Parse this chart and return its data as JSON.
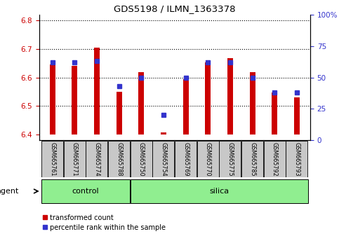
{
  "title": "GDS5198 / ILMN_1363378",
  "samples": [
    "GSM665761",
    "GSM665771",
    "GSM665774",
    "GSM665788",
    "GSM665750",
    "GSM665754",
    "GSM665769",
    "GSM665770",
    "GSM665775",
    "GSM665785",
    "GSM665792",
    "GSM665793"
  ],
  "n_control": 4,
  "n_silica": 8,
  "transformed_count": [
    6.645,
    6.642,
    6.706,
    6.551,
    6.618,
    6.408,
    6.594,
    6.654,
    6.668,
    6.618,
    6.548,
    6.529
  ],
  "percentile_rank": [
    62,
    62,
    63,
    43,
    50,
    20,
    50,
    62,
    62,
    50,
    38,
    38
  ],
  "ylim_left": [
    6.38,
    6.82
  ],
  "ylim_right": [
    0,
    100
  ],
  "yticks_left": [
    6.4,
    6.5,
    6.6,
    6.7,
    6.8
  ],
  "yticks_right": [
    0,
    25,
    50,
    75,
    100
  ],
  "bar_color": "#cc0000",
  "dot_color": "#3333cc",
  "bar_bottom": 6.4,
  "group_color": "#90ee90",
  "left_axis_color": "#cc0000",
  "right_axis_color": "#3333cc",
  "tick_label_bg": "#c8c8c8",
  "bar_width": 0.25
}
